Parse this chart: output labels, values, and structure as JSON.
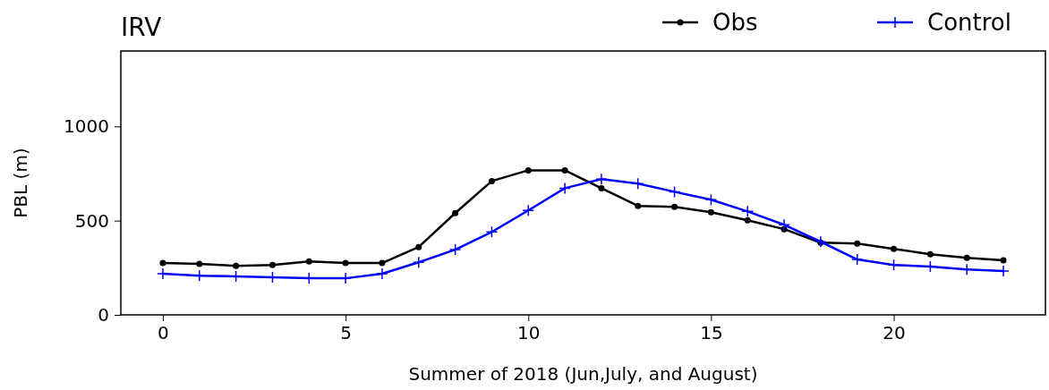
{
  "chart_data": {
    "type": "line",
    "title": "IRV",
    "xlabel": "Summer of 2018 (Jun,July, and August)",
    "ylabel": "PBL (m)",
    "x": [
      0,
      1,
      2,
      3,
      4,
      5,
      6,
      7,
      8,
      9,
      10,
      11,
      12,
      13,
      14,
      15,
      16,
      17,
      18,
      19,
      20,
      21,
      22,
      23
    ],
    "series": [
      {
        "name": "Obs",
        "color": "#000000",
        "marker": "circle",
        "values": [
          275,
          270,
          260,
          265,
          284,
          275,
          275,
          360,
          540,
          710,
          767,
          767,
          672,
          578,
          573,
          545,
          502,
          455,
          383,
          379,
          350,
          322,
          303,
          289
        ]
      },
      {
        "name": "Control",
        "color": "#0000ff",
        "marker": "cross",
        "values": [
          218,
          208,
          204,
          199,
          194,
          194,
          218,
          279,
          346,
          440,
          554,
          672,
          720,
          696,
          653,
          611,
          549,
          478,
          388,
          294,
          265,
          256,
          241,
          232
        ]
      }
    ],
    "xlim": [
      -1.15,
      24.15
    ],
    "xticks": [
      0,
      5,
      10,
      15,
      20
    ],
    "ylim": [
      0,
      1400
    ],
    "yticks": [
      0,
      500,
      1000
    ],
    "grid": false,
    "legend": "top right",
    "line_style": "solid"
  }
}
